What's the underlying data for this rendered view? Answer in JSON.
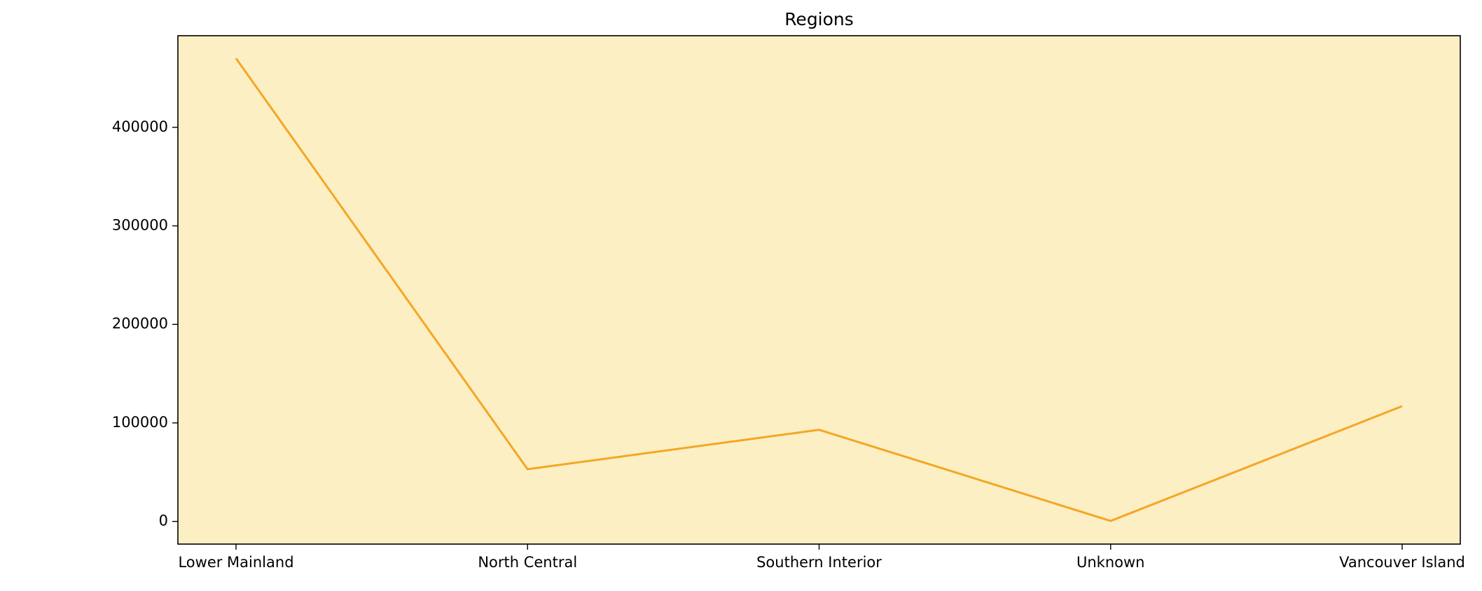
{
  "chart_data": {
    "type": "line",
    "title": "Regions",
    "xlabel": "",
    "ylabel": "",
    "categories": [
      "Lower Mainland",
      "North Central",
      "Southern Interior",
      "Unknown",
      "Vancouver Island"
    ],
    "series": [
      {
        "values": [
          470000,
          53000,
          93000,
          500,
          117000
        ]
      }
    ],
    "ylim": [
      -23000,
      493000
    ],
    "yticks": [
      0,
      100000,
      200000,
      300000,
      400000
    ],
    "ytick_labels": [
      "0",
      "100000",
      "200000",
      "300000",
      "400000"
    ],
    "grid": false,
    "colors": {
      "line": "#f5a623",
      "plot_background": "#fcefc4",
      "frame": "#000000"
    }
  }
}
